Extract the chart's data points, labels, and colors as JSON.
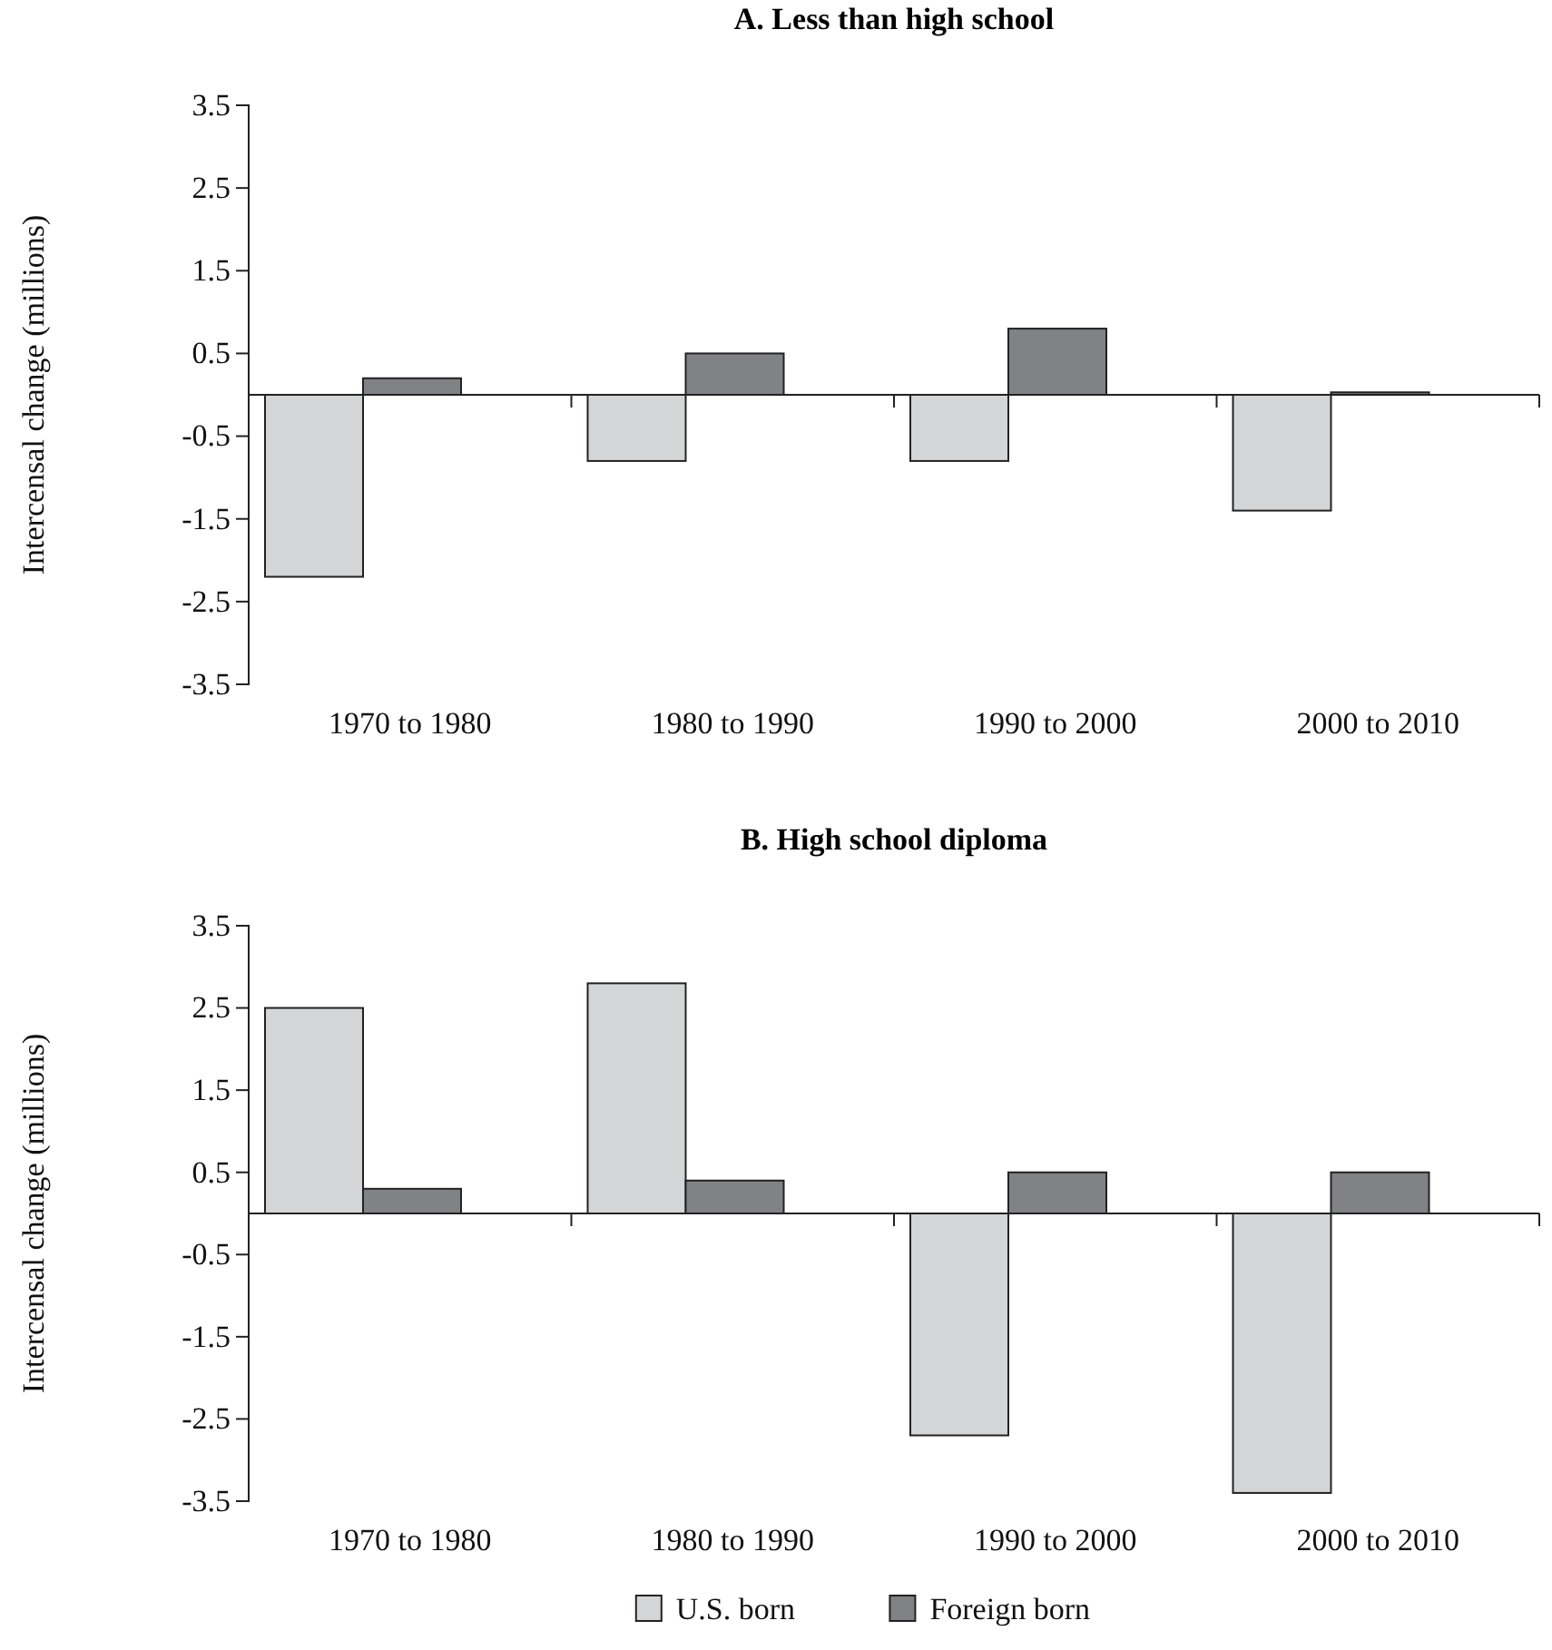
{
  "chart_data": [
    {
      "type": "bar",
      "title": "A.  Less than high school",
      "ylabel": "Intercensal change (millions)",
      "categories": [
        "1970 to 1980",
        "1980 to 1990",
        "1990 to 2000",
        "2000 to 2010"
      ],
      "series": [
        {
          "color": "#d4d5d7",
          "values": [
            -2.2,
            -0.8,
            -0.8,
            -1.4
          ]
        },
        {
          "color": "#808285",
          "values": [
            0.2,
            0.5,
            0.8,
            0.03
          ]
        }
      ],
      "ylim": [
        -3.5,
        3.5
      ],
      "yticks": [
        -3.5,
        -2.5,
        -1.5,
        -0.5,
        0.5,
        1.5,
        2.5,
        3.5
      ],
      "grid": false,
      "legend": false
    },
    {
      "type": "bar",
      "title": "B.  High school diploma",
      "ylabel": "Intercensal change (millions)",
      "categories": [
        "1970 to 1980",
        "1980 to 1990",
        "1990 to 2000",
        "2000 to 2010"
      ],
      "series": [
        {
          "name": "U.S. born",
          "color": "#d4d5d7",
          "values": [
            2.5,
            2.8,
            -2.7,
            -3.4
          ]
        },
        {
          "name": "Foreign born",
          "color": "#808285",
          "values": [
            0.3,
            0.4,
            0.5,
            0.5
          ]
        }
      ],
      "ylim": [
        -3.5,
        3.5
      ],
      "yticks": [
        -3.5,
        -2.5,
        -1.5,
        -0.5,
        0.5,
        1.5,
        2.5,
        3.5
      ],
      "grid": false,
      "legend": "bottom"
    }
  ]
}
